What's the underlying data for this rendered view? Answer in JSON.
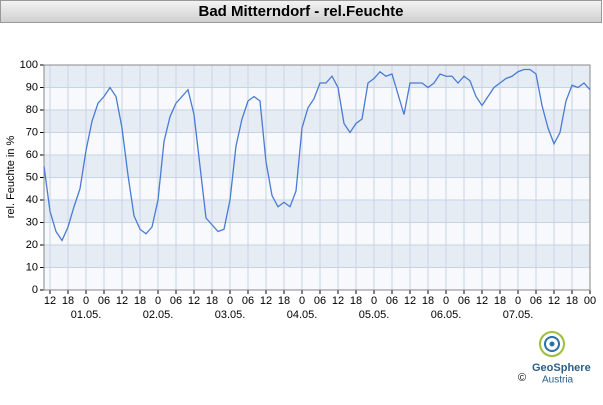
{
  "chart_data": {
    "type": "line",
    "title": "Bad Mitterndorf - rel.Feuchte",
    "y_label": "rel. Feuchte in %",
    "x": [
      -14,
      -12,
      -10,
      -8,
      -6,
      -4,
      -2,
      0,
      2,
      4,
      6,
      8,
      10,
      12,
      14,
      16,
      18,
      20,
      22,
      24,
      26,
      28,
      30,
      32,
      34,
      36,
      38,
      40,
      42,
      44,
      46,
      48,
      50,
      52,
      54,
      56,
      58,
      60,
      62,
      64,
      66,
      68,
      70,
      72,
      74,
      76,
      78,
      80,
      82,
      84,
      86,
      88,
      90,
      92,
      94,
      96,
      98,
      100,
      102,
      104,
      106,
      108,
      110,
      112,
      114,
      116,
      118,
      120,
      122,
      124,
      126,
      128,
      130,
      132,
      134,
      136,
      138,
      140,
      142,
      144,
      146,
      148,
      150,
      152,
      154,
      156,
      158,
      160,
      162,
      164,
      166,
      168
    ],
    "series": [
      {
        "name": "rel.Feuchte",
        "color": "#4a7bd4",
        "values": [
          55,
          35,
          26,
          22,
          28,
          37,
          45,
          62,
          75,
          83,
          86,
          90,
          86,
          72,
          51,
          33,
          27,
          25,
          28,
          40,
          66,
          77,
          83,
          86,
          89,
          78,
          55,
          32,
          29,
          26,
          27,
          40,
          64,
          76,
          84,
          86,
          84,
          57,
          42,
          37,
          39,
          37,
          44,
          72,
          81,
          85,
          92,
          92,
          95,
          90,
          74,
          70,
          74,
          76,
          92,
          94,
          97,
          95,
          96,
          87,
          78,
          92,
          92,
          92,
          90,
          92,
          96,
          95,
          95,
          92,
          95,
          93,
          86,
          82,
          86,
          90,
          92,
          94,
          95,
          97,
          98,
          98,
          96,
          82,
          72,
          65,
          70,
          84,
          91,
          90,
          92,
          89
        ]
      }
    ],
    "xlim": [
      -14,
      168
    ],
    "ylim": [
      0,
      100
    ],
    "yticks": [
      0,
      10,
      20,
      30,
      40,
      50,
      60,
      70,
      80,
      90,
      100
    ],
    "xticks": [
      {
        "value": -12,
        "label": "12"
      },
      {
        "value": -6,
        "label": "18"
      },
      {
        "value": 0,
        "label": "0"
      },
      {
        "value": 6,
        "label": "06"
      },
      {
        "value": 12,
        "label": "12"
      },
      {
        "value": 18,
        "label": "18"
      },
      {
        "value": 24,
        "label": "0"
      },
      {
        "value": 30,
        "label": "06"
      },
      {
        "value": 36,
        "label": "12"
      },
      {
        "value": 42,
        "label": "18"
      },
      {
        "value": 48,
        "label": "0"
      },
      {
        "value": 54,
        "label": "06"
      },
      {
        "value": 60,
        "label": "12"
      },
      {
        "value": 66,
        "label": "18"
      },
      {
        "value": 72,
        "label": "0"
      },
      {
        "value": 78,
        "label": "06"
      },
      {
        "value": 84,
        "label": "12"
      },
      {
        "value": 90,
        "label": "18"
      },
      {
        "value": 96,
        "label": "0"
      },
      {
        "value": 102,
        "label": "06"
      },
      {
        "value": 108,
        "label": "12"
      },
      {
        "value": 114,
        "label": "18"
      },
      {
        "value": 120,
        "label": "0"
      },
      {
        "value": 126,
        "label": "06"
      },
      {
        "value": 132,
        "label": "12"
      },
      {
        "value": 138,
        "label": "18"
      },
      {
        "value": 144,
        "label": "0"
      },
      {
        "value": 150,
        "label": "06"
      },
      {
        "value": 156,
        "label": "12"
      },
      {
        "value": 162,
        "label": "18"
      },
      {
        "value": 168,
        "label": "00"
      }
    ],
    "date_labels": [
      {
        "value": 0,
        "label": "01.05."
      },
      {
        "value": 24,
        "label": "02.05."
      },
      {
        "value": 48,
        "label": "03.05."
      },
      {
        "value": 72,
        "label": "04.05."
      },
      {
        "value": 96,
        "label": "05.05."
      },
      {
        "value": 120,
        "label": "06.05."
      },
      {
        "value": 144,
        "label": "07.05."
      }
    ],
    "grid": true,
    "logo": {
      "name": "GeoSphere",
      "sub": "Austria",
      "copyright": "©"
    }
  }
}
